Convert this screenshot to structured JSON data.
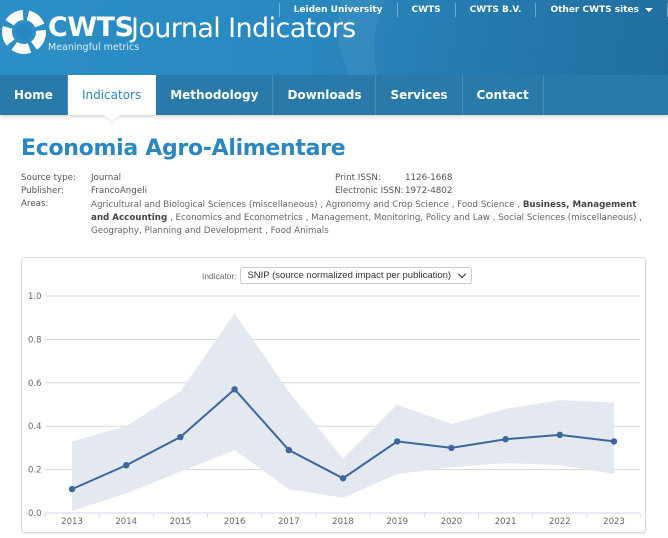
{
  "header": {
    "brand": "CWTS",
    "product": "Journal Indicators",
    "tagline": "Meaningful metrics",
    "top_links": [
      "Leiden University",
      "CWTS",
      "CWTS B.V.",
      "Other CWTS sites"
    ]
  },
  "nav": {
    "items": [
      {
        "label": "Home",
        "active": false
      },
      {
        "label": "Indicators",
        "active": true
      },
      {
        "label": "Methodology",
        "active": false
      },
      {
        "label": "Downloads",
        "active": false
      },
      {
        "label": "Services",
        "active": false
      },
      {
        "label": "Contact",
        "active": false
      }
    ]
  },
  "journal": {
    "title": "Economia Agro-Alimentare",
    "source_type_label": "Source type:",
    "source_type": "Journal",
    "publisher_label": "Publisher:",
    "publisher": "FrancoAngeli",
    "areas_label": "Areas:",
    "print_issn_label": "Print ISSN:",
    "print_issn": "1126-1668",
    "electronic_issn_label": "Electronic ISSN:",
    "electronic_issn": "1972-4802",
    "areas": [
      {
        "name": "Agricultural and Biological Sciences (miscellaneous)",
        "bold": false
      },
      {
        "name": "Agronomy and Crop Science",
        "bold": false
      },
      {
        "name": "Food Science",
        "bold": false
      },
      {
        "name": "Business, Management and Accounting",
        "bold": true
      },
      {
        "name": "Economics and Econometrics",
        "bold": false
      },
      {
        "name": "Management, Monitoring, Policy and Law",
        "bold": false
      },
      {
        "name": "Social Sciences (miscellaneous)",
        "bold": false
      },
      {
        "name": "Geography, Planning and Development",
        "bold": false
      },
      {
        "name": "Food Animals",
        "bold": false
      }
    ]
  },
  "indicator": {
    "label": "Indicator:",
    "selected": "SNIP (source normalized impact per publication)"
  },
  "colors": {
    "header_blue": "#2a88c0",
    "nav_blue": "#2a7aa9",
    "title_blue": "#2a87c0",
    "line": "#3b679f",
    "band": "#e1e7f0"
  },
  "chart_data": {
    "type": "line",
    "title": "SNIP (source normalized impact per publication)",
    "xlabel": "",
    "ylabel": "",
    "x": [
      2013,
      2014,
      2015,
      2016,
      2017,
      2018,
      2019,
      2020,
      2021,
      2022,
      2023
    ],
    "series": [
      {
        "name": "SNIP",
        "values": [
          0.11,
          0.22,
          0.35,
          0.57,
          0.29,
          0.16,
          0.33,
          0.3,
          0.34,
          0.36,
          0.33
        ]
      },
      {
        "name": "Stability interval upper",
        "values": [
          0.33,
          0.4,
          0.56,
          0.92,
          0.56,
          0.25,
          0.5,
          0.41,
          0.48,
          0.52,
          0.51
        ]
      },
      {
        "name": "Stability interval lower",
        "values": [
          0.01,
          0.09,
          0.19,
          0.29,
          0.11,
          0.07,
          0.18,
          0.21,
          0.23,
          0.22,
          0.18
        ]
      }
    ],
    "yticks": [
      "0.0",
      "0.2",
      "0.4",
      "0.6",
      "0.8",
      "1.0"
    ],
    "ylim": [
      0,
      1.0
    ],
    "grid": true,
    "legend": "none"
  }
}
